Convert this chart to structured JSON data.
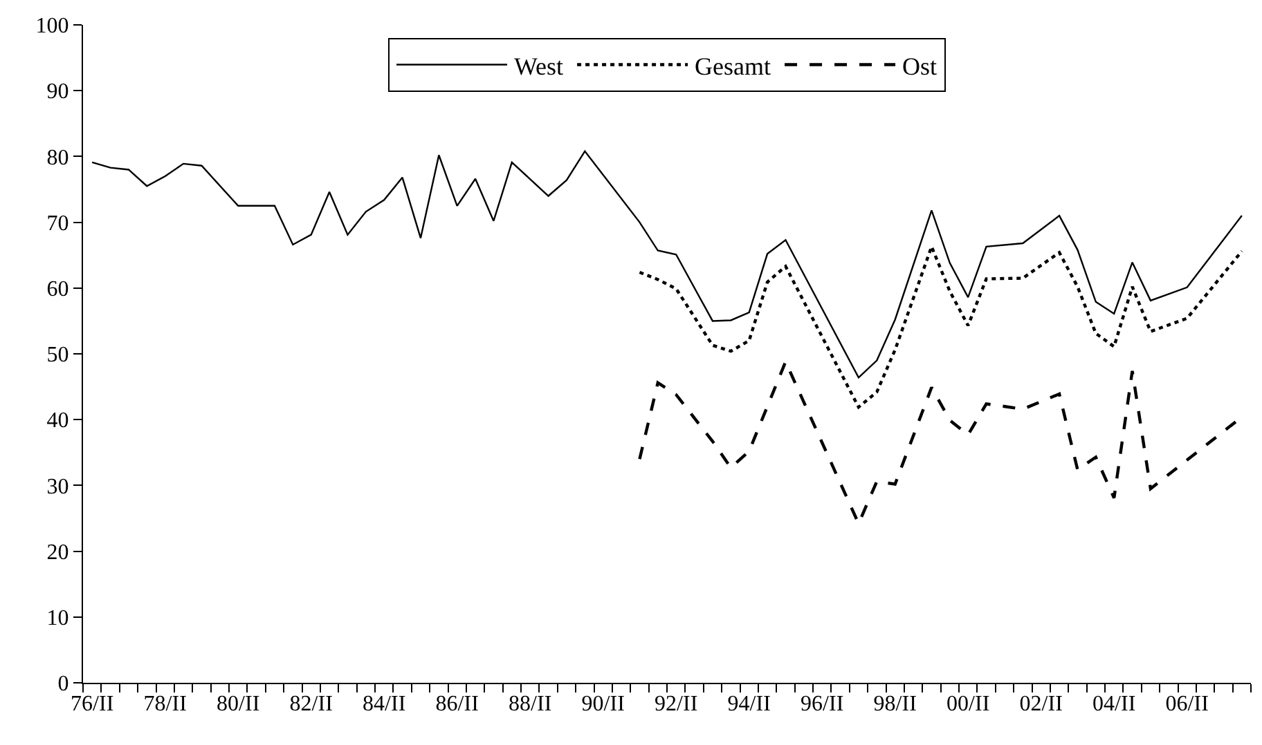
{
  "chart_data": {
    "type": "line",
    "categories": [
      "76/II",
      null,
      null,
      null,
      "78/II",
      null,
      null,
      null,
      "80/II",
      null,
      null,
      null,
      "82/II",
      null,
      null,
      null,
      "84/II",
      null,
      null,
      null,
      "86/II",
      null,
      null,
      null,
      "88/II",
      null,
      null,
      null,
      "90/II",
      null,
      null,
      null,
      "92/II",
      null,
      null,
      null,
      "94/II",
      null,
      null,
      null,
      "96/II",
      null,
      null,
      null,
      "98/II",
      null,
      null,
      null,
      "00/II",
      null,
      null,
      null,
      "02/II",
      null,
      null,
      null,
      "04/II",
      null,
      null,
      null,
      "06/II",
      null,
      null,
      null
    ],
    "ylim": [
      0,
      100
    ],
    "yticks": [
      0,
      10,
      20,
      30,
      40,
      50,
      60,
      70,
      80,
      90,
      100
    ],
    "legend": "top",
    "marker": "none",
    "series": [
      {
        "name": "West",
        "color": "#000000",
        "line_style": "solid",
        "values": [
          79.1,
          78.3,
          78.0,
          75.5,
          77.0,
          78.9,
          78.6,
          null,
          72.5,
          null,
          72.5,
          66.6,
          68.1,
          74.6,
          68.1,
          71.6,
          73.4,
          76.8,
          67.6,
          80.2,
          72.5,
          76.6,
          70.2,
          79.1,
          null,
          74.0,
          76.4,
          80.8,
          null,
          null,
          70.0,
          65.7,
          65.1,
          null,
          55.0,
          55.1,
          56.3,
          65.2,
          67.3,
          null,
          null,
          null,
          46.4,
          49.0,
          55.2,
          null,
          71.8,
          63.8,
          58.6,
          66.3,
          null,
          66.8,
          null,
          71.0,
          65.8,
          57.9,
          56.1,
          63.9,
          58.1,
          null,
          60.1,
          null,
          null,
          71.0
        ]
      },
      {
        "name": "Gesamt",
        "color": "#000000",
        "line_style": "dotted",
        "values": [
          null,
          null,
          null,
          null,
          null,
          null,
          null,
          null,
          null,
          null,
          null,
          null,
          null,
          null,
          null,
          null,
          null,
          null,
          null,
          null,
          null,
          null,
          null,
          null,
          null,
          null,
          null,
          null,
          null,
          null,
          62.4,
          61.3,
          59.9,
          null,
          51.3,
          50.4,
          52.0,
          60.9,
          63.3,
          null,
          null,
          null,
          41.9,
          44.2,
          50.6,
          null,
          66.3,
          59.5,
          54.3,
          61.4,
          null,
          61.5,
          null,
          65.4,
          60.2,
          53.1,
          51.1,
          60.2,
          53.4,
          null,
          55.4,
          null,
          null,
          65.6
        ]
      },
      {
        "name": "Ost",
        "color": "#000000",
        "line_style": "dashed",
        "values": [
          null,
          null,
          null,
          null,
          null,
          null,
          null,
          null,
          null,
          null,
          null,
          null,
          null,
          null,
          null,
          null,
          null,
          null,
          null,
          null,
          null,
          null,
          null,
          null,
          null,
          null,
          null,
          null,
          null,
          null,
          34.0,
          45.6,
          43.8,
          null,
          36.7,
          32.7,
          35.2,
          null,
          48.8,
          null,
          null,
          null,
          24.2,
          30.6,
          30.2,
          null,
          44.9,
          39.9,
          37.7,
          42.4,
          null,
          41.6,
          null,
          43.9,
          32.4,
          34.3,
          28.1,
          47.4,
          29.5,
          null,
          null,
          null,
          null,
          40.4
        ]
      }
    ]
  }
}
